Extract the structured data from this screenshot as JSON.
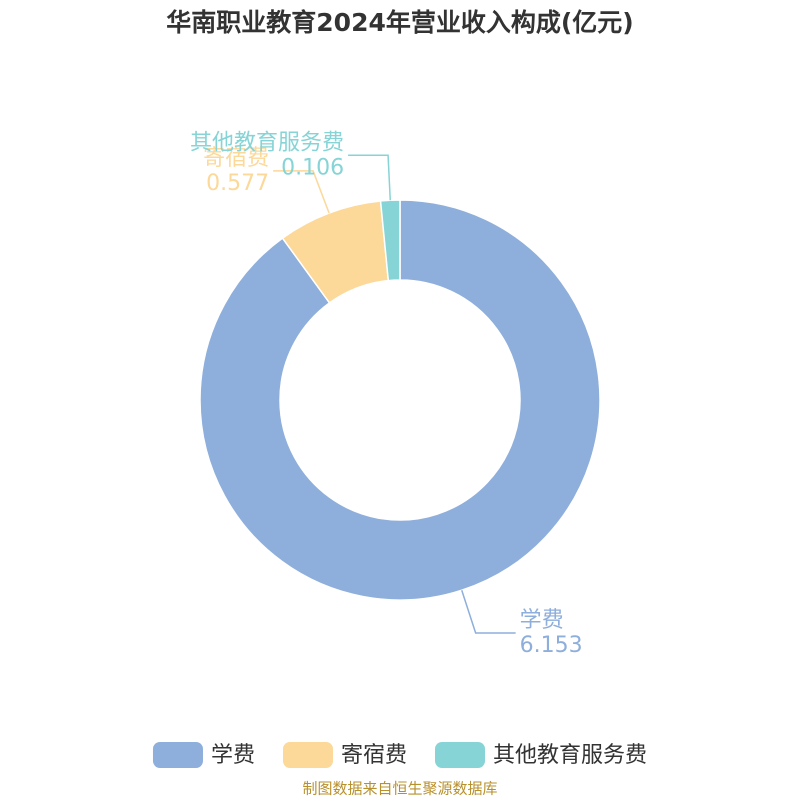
{
  "chart_data": {
    "type": "pie",
    "title": "华南职业教育2024年营业收入构成(亿元)",
    "categories": [
      "学费",
      "寄宿费",
      "其他教育服务费"
    ],
    "values": [
      6.153,
      0.577,
      0.106
    ],
    "colors": [
      "#8eaedb",
      "#fcd899",
      "#86d4d6"
    ],
    "source": "制图数据来自恒生聚源数据库"
  }
}
